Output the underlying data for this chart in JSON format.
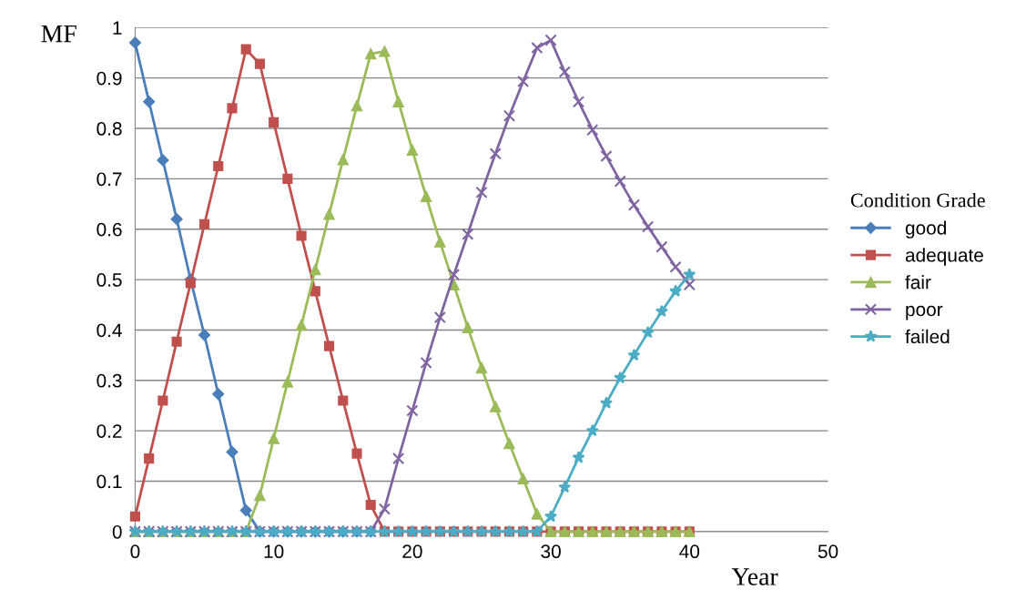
{
  "chart_data": {
    "type": "line",
    "xlabel": "Year",
    "ylabel": "MF",
    "legend_title": "Condition Grade",
    "legend": "right",
    "x": [
      0,
      1,
      2,
      3,
      4,
      5,
      6,
      7,
      8,
      9,
      10,
      11,
      12,
      13,
      14,
      15,
      16,
      17,
      18,
      19,
      20,
      21,
      22,
      23,
      24,
      25,
      26,
      27,
      28,
      29,
      30,
      31,
      32,
      33,
      34,
      35,
      36,
      37,
      38,
      39,
      40
    ],
    "xlim": [
      0,
      50
    ],
    "xticks": [
      0,
      10,
      20,
      30,
      40,
      50
    ],
    "ylim": [
      0,
      1
    ],
    "yticks": [
      0,
      0.1,
      0.2,
      0.3,
      0.4,
      0.5,
      0.6,
      0.7,
      0.8,
      0.9,
      1
    ],
    "grid": "y",
    "series": [
      {
        "name": "good",
        "color": "#4a7ebb",
        "marker": "diamond",
        "values": [
          0.97,
          0.853,
          0.737,
          0.62,
          0.5,
          0.39,
          0.273,
          0.158,
          0.042,
          0,
          0,
          0,
          0,
          0,
          0,
          0,
          0,
          0,
          null,
          null,
          null,
          null,
          null,
          null,
          null,
          null,
          null,
          null,
          null,
          null,
          null,
          null,
          null,
          null,
          null,
          null,
          null,
          null,
          null,
          null,
          null
        ]
      },
      {
        "name": "adequate",
        "color": "#c0504d",
        "marker": "square",
        "values": [
          0.03,
          0.145,
          0.26,
          0.377,
          0.493,
          0.61,
          0.725,
          0.84,
          0.957,
          0.928,
          0.812,
          0.7,
          0.587,
          0.477,
          0.368,
          0.26,
          0.155,
          0.053,
          0,
          0,
          0,
          0,
          0,
          0,
          0,
          0,
          0,
          0,
          0,
          0,
          0,
          0,
          0,
          0,
          0,
          0,
          0,
          0,
          0,
          0,
          0
        ]
      },
      {
        "name": "fair",
        "color": "#9bbb59",
        "marker": "triangle",
        "values": [
          0,
          0,
          0,
          0,
          0,
          0,
          0,
          0,
          0,
          0.072,
          0.185,
          0.297,
          0.41,
          0.52,
          0.63,
          0.738,
          0.845,
          0.948,
          0.953,
          0.853,
          0.757,
          0.665,
          0.575,
          0.49,
          0.405,
          0.325,
          0.248,
          0.175,
          0.105,
          0.035,
          0,
          0,
          0,
          0,
          0,
          0,
          0,
          0,
          0,
          0,
          0
        ]
      },
      {
        "name": "poor",
        "color": "#8064a2",
        "marker": "cross",
        "values": [
          0,
          0,
          0,
          0,
          0,
          0,
          0,
          0,
          0,
          0,
          0,
          0,
          0,
          0,
          0,
          0,
          0,
          0,
          0.045,
          0.145,
          0.24,
          0.335,
          0.425,
          0.51,
          0.59,
          0.673,
          0.75,
          0.825,
          0.893,
          0.96,
          0.975,
          0.912,
          0.853,
          0.797,
          0.745,
          0.695,
          0.648,
          0.605,
          0.565,
          0.525,
          0.49
        ]
      },
      {
        "name": "failed",
        "color": "#4bacc6",
        "marker": "star",
        "values": [
          0,
          0,
          0,
          0,
          0,
          0,
          0,
          0,
          0,
          0,
          0,
          0,
          0,
          0,
          0,
          0,
          0,
          0,
          0,
          0,
          0,
          0,
          0,
          0,
          0,
          0,
          0,
          0,
          0,
          0,
          0.03,
          0.088,
          0.147,
          0.2,
          0.255,
          0.305,
          0.35,
          0.395,
          0.437,
          0.477,
          0.51
        ]
      }
    ]
  }
}
